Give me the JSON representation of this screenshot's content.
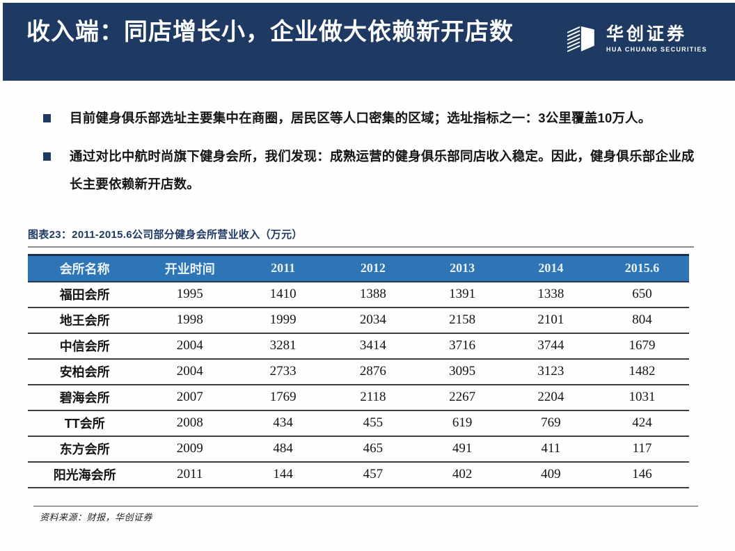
{
  "slide": {
    "colors": {
      "header_bg": "#1e3a63",
      "table_header_bg": "#2e75b6"
    },
    "header": {
      "title": "收入端：同店增长小，企业做大依赖新开店数"
    },
    "logo": {
      "name": "华创证券",
      "subtitle": "HUA CHUANG SECURITIES"
    },
    "bullets": [
      "目前健身俱乐部选址主要集中在商圈，居民区等人口密集的区域；选址指标之一：3公里覆盖10万人。",
      "通过对比中航时尚旗下健身会所，我们发现：成熟运营的健身俱乐部同店收入稳定。因此，健身俱乐部企业成长主要依赖新开店数。"
    ],
    "figure": {
      "title": "图表23：2011-2015.6公司部分健身会所营业收入（万元）",
      "table": {
        "columns": [
          "会所名称",
          "开业时间",
          "2011",
          "2012",
          "2013",
          "2014",
          "2015.6"
        ],
        "rows": [
          [
            "福田会所",
            "1995",
            "1410",
            "1388",
            "1391",
            "1338",
            "650"
          ],
          [
            "地王会所",
            "1998",
            "1999",
            "2034",
            "2158",
            "2101",
            "804"
          ],
          [
            "中信会所",
            "2004",
            "3281",
            "3414",
            "3716",
            "3744",
            "1679"
          ],
          [
            "安柏会所",
            "2004",
            "2733",
            "2876",
            "3095",
            "3123",
            "1482"
          ],
          [
            "碧海会所",
            "2007",
            "1769",
            "2118",
            "2267",
            "2204",
            "1031"
          ],
          [
            "TT会所",
            "2008",
            "434",
            "455",
            "619",
            "769",
            "424"
          ],
          [
            "东方会所",
            "2009",
            "484",
            "465",
            "491",
            "411",
            "117"
          ],
          [
            "阳光海会所",
            "2011",
            "144",
            "457",
            "402",
            "409",
            "146"
          ]
        ]
      },
      "source": "资料来源：财报，华创证券"
    }
  }
}
